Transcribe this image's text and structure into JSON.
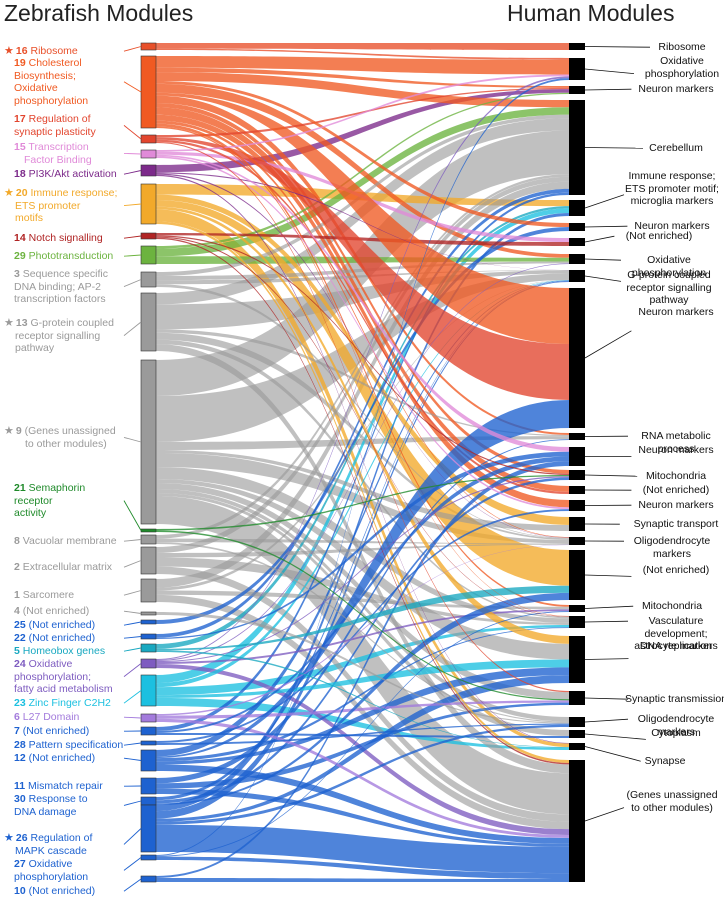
{
  "titles": {
    "left": "Zebrafish Modules",
    "right": "Human Modules"
  },
  "zebrafish_modules": [
    {
      "id": "16",
      "label": "Ribosome",
      "color": "#e8502a",
      "star": true,
      "star_color": "#e8502a"
    },
    {
      "id": "19",
      "label": "Cholesterol Biosynthesis; Oxidative phosphorylation",
      "color": "#f05a22"
    },
    {
      "id": "17",
      "label": "Regulation of synaptic plasticity",
      "color": "#e2452e"
    },
    {
      "id": "15",
      "label": "Transcription Factor Binding",
      "color": "#e08ad8"
    },
    {
      "id": "18",
      "label": "PI3K/Akt activation",
      "color": "#7c2a8a"
    },
    {
      "id": "20",
      "label": "Immune response; ETS promoter motifs",
      "color": "#f2a92a",
      "star": true,
      "star_color": "#f2a92a"
    },
    {
      "id": "14",
      "label": "Notch signalling",
      "color": "#b02424"
    },
    {
      "id": "29",
      "label": "Phototransduction",
      "color": "#6cb33f"
    },
    {
      "id": "3",
      "label": "Sequence specific DNA binding; AP-2 transcription factors",
      "color": "#9a9a9a"
    },
    {
      "id": "13",
      "label": "G-protein coupled receptor signalling pathway",
      "color": "#9a9a9a",
      "star": true,
      "star_color": "#9a9a9a"
    },
    {
      "id": "9",
      "label": "(Genes unassigned to other modules)",
      "color": "#9a9a9a",
      "star": true,
      "star_color": "#9a9a9a"
    },
    {
      "id": "21",
      "label": "Semaphorin receptor activity",
      "color": "#1f8a2a"
    },
    {
      "id": "8",
      "label": "Vacuolar membrane",
      "color": "#9a9a9a"
    },
    {
      "id": "2",
      "label": "Extracellular matrix",
      "color": "#9a9a9a"
    },
    {
      "id": "1",
      "label": "Sarcomere",
      "color": "#9a9a9a"
    },
    {
      "id": "4",
      "label": "(Not enriched)",
      "color": "#9a9a9a"
    },
    {
      "id": "25",
      "label": "(Not enriched)",
      "color": "#1e62d0"
    },
    {
      "id": "22",
      "label": "(Not enriched)",
      "color": "#1e62d0"
    },
    {
      "id": "5",
      "label": "Homeobox genes",
      "color": "#18a8c0"
    },
    {
      "id": "24",
      "label": "Oxidative phosphorylation; fatty acid metabolism",
      "color": "#7e5cc0"
    },
    {
      "id": "23",
      "label": "Zinc Finger C2H2",
      "color": "#1cc0e0"
    },
    {
      "id": "6",
      "label": "L27 Domain",
      "color": "#a37bdc"
    },
    {
      "id": "7",
      "label": "(Not enriched)",
      "color": "#1e62d0"
    },
    {
      "id": "28",
      "label": "Pattern specification",
      "color": "#1e62d0"
    },
    {
      "id": "12",
      "label": "(Not enriched)",
      "color": "#1e62d0"
    },
    {
      "id": "11",
      "label": "Mismatch repair",
      "color": "#1e62d0"
    },
    {
      "id": "30",
      "label": "Response to DNA damage",
      "color": "#1e62d0"
    },
    {
      "id": "26",
      "label": "Regulation of MAPK cascade",
      "color": "#1e62d0",
      "star": true,
      "star_color": "#1e62d0"
    },
    {
      "id": "27",
      "label": "Oxidative phosphorylation",
      "color": "#1e62d0"
    },
    {
      "id": "10",
      "label": "(Not enriched)",
      "color": "#1e62d0"
    }
  ],
  "human_modules": [
    {
      "label": "Ribosome"
    },
    {
      "label": "Oxidative phosphorylation"
    },
    {
      "label": "Neuron markers"
    },
    {
      "label": "Cerebellum"
    },
    {
      "label": "Immune response; ETS promoter motif; microglia markers"
    },
    {
      "label": "Neuron markers"
    },
    {
      "label": "(Not enriched)"
    },
    {
      "label": "Oxidative phosphorylation"
    },
    {
      "label": "G-protein coupled receptor signalling pathway"
    },
    {
      "label": "Neuron markers"
    },
    {
      "label": "RNA metabolic process"
    },
    {
      "label": "Neuron markers"
    },
    {
      "label": "Mitochondria"
    },
    {
      "label": "(Not enriched)"
    },
    {
      "label": "Neuron markers"
    },
    {
      "label": "Synaptic transport"
    },
    {
      "label": "Oligodendrocyte markers"
    },
    {
      "label": "(Not enriched)"
    },
    {
      "label": "Mitochondria"
    },
    {
      "label": "Vasculature development; astrocyte markers"
    },
    {
      "label": "DNA replication"
    },
    {
      "label": "Synaptic transmission"
    },
    {
      "label": "Oligodendrocyte markers"
    },
    {
      "label": "Cytoplasm"
    },
    {
      "label": "Synapse"
    },
    {
      "label": "(Genes unassigned to other modules)"
    }
  ],
  "flows": [
    {
      "from": "16",
      "to": 0,
      "w": 4
    },
    {
      "from": "16",
      "to": 1,
      "w": 1
    },
    {
      "from": "19",
      "to": 1,
      "w": 8
    },
    {
      "from": "19",
      "to": 3,
      "w": 6
    },
    {
      "from": "19",
      "to": 7,
      "w": 6
    },
    {
      "from": "19",
      "to": 10,
      "w": 5
    },
    {
      "from": "19",
      "to": 13,
      "w": 5
    },
    {
      "from": "19",
      "to": 14,
      "w": 4
    },
    {
      "from": "19",
      "to": 2,
      "w": 3
    },
    {
      "from": "19",
      "to": 12,
      "w": 3
    },
    {
      "from": "19",
      "to": 18,
      "w": 2
    },
    {
      "from": "19",
      "to": 16,
      "w": 2
    },
    {
      "from": "19",
      "to": 9,
      "w": 2
    },
    {
      "from": "19",
      "to": 5,
      "w": 2
    },
    {
      "from": "19",
      "to": 19,
      "w": 1
    },
    {
      "from": "17",
      "to": 2,
      "w": 2
    },
    {
      "from": "17",
      "to": 9,
      "w": 2
    },
    {
      "from": "17",
      "to": 13,
      "w": 2
    },
    {
      "from": "17",
      "to": 21,
      "w": 1
    },
    {
      "from": "15",
      "to": 1,
      "w": 1
    },
    {
      "from": "15",
      "to": 6,
      "w": 2
    },
    {
      "from": "15",
      "to": 11,
      "w": 1
    },
    {
      "from": "15",
      "to": 14,
      "w": 1
    },
    {
      "from": "18",
      "to": 2,
      "w": 6
    },
    {
      "from": "18",
      "to": 8,
      "w": 1
    },
    {
      "from": "18",
      "to": 16,
      "w": 1
    },
    {
      "from": "18",
      "to": 24,
      "w": 1
    },
    {
      "from": "20",
      "to": 4,
      "w": 8
    },
    {
      "from": "20",
      "to": 24,
      "w": 9
    },
    {
      "from": "20",
      "to": 17,
      "w": 5
    },
    {
      "from": "20",
      "to": 15,
      "w": 4
    },
    {
      "from": "20",
      "to": 20,
      "w": 2
    },
    {
      "from": "20",
      "to": 25,
      "w": 2
    },
    {
      "from": "14",
      "to": 6,
      "w": 2
    },
    {
      "from": "14",
      "to": 19,
      "w": 1
    },
    {
      "from": "14",
      "to": 12,
      "w": 1
    },
    {
      "from": "14",
      "to": 25,
      "w": 1
    },
    {
      "from": "29",
      "to": 3,
      "w": 6
    },
    {
      "from": "29",
      "to": 7,
      "w": 6
    },
    {
      "from": "29",
      "to": 2,
      "w": 2
    },
    {
      "from": "3",
      "to": 7,
      "w": 3
    },
    {
      "from": "3",
      "to": 8,
      "w": 3
    },
    {
      "from": "3",
      "to": 3,
      "w": 3
    },
    {
      "from": "3",
      "to": 16,
      "w": 2
    },
    {
      "from": "13",
      "to": 8,
      "w": 22
    },
    {
      "from": "13",
      "to": 3,
      "w": 10
    },
    {
      "from": "13",
      "to": 16,
      "w": 6
    },
    {
      "from": "13",
      "to": 25,
      "w": 6
    },
    {
      "from": "13",
      "to": 19,
      "w": 4
    },
    {
      "from": "13",
      "to": 10,
      "w": 3
    },
    {
      "from": "9",
      "to": 8,
      "w": 46
    },
    {
      "from": "9",
      "to": 3,
      "w": 36
    },
    {
      "from": "9",
      "to": 25,
      "w": 28
    },
    {
      "from": "9",
      "to": 16,
      "w": 14
    },
    {
      "from": "9",
      "to": 19,
      "w": 12
    },
    {
      "from": "9",
      "to": 10,
      "w": 8
    },
    {
      "from": "9",
      "to": 21,
      "w": 6
    },
    {
      "from": "9",
      "to": 22,
      "w": 4
    },
    {
      "from": "9",
      "to": 23,
      "w": 3
    },
    {
      "from": "9",
      "to": 20,
      "w": 4
    },
    {
      "from": "9",
      "to": 15,
      "w": 3
    },
    {
      "from": "21",
      "to": 21,
      "w": 1
    },
    {
      "from": "21",
      "to": 12,
      "w": 1
    },
    {
      "from": "8",
      "to": 16,
      "w": 2
    },
    {
      "from": "8",
      "to": 3,
      "w": 2
    },
    {
      "from": "8",
      "to": 22,
      "w": 1
    },
    {
      "from": "2",
      "to": 25,
      "w": 5
    },
    {
      "from": "2",
      "to": 19,
      "w": 6
    },
    {
      "from": "2",
      "to": 16,
      "w": 3
    },
    {
      "from": "2",
      "to": 3,
      "w": 4
    },
    {
      "from": "1",
      "to": 25,
      "w": 5
    },
    {
      "from": "1",
      "to": 3,
      "w": 6
    },
    {
      "from": "1",
      "to": 18,
      "w": 3
    },
    {
      "from": "1",
      "to": 8,
      "w": 2
    },
    {
      "from": "4",
      "to": 22,
      "w": 1
    },
    {
      "from": "25",
      "to": 5,
      "w": 2
    },
    {
      "from": "22",
      "to": 3,
      "w": 3
    },
    {
      "from": "22",
      "to": 11,
      "w": 1
    },
    {
      "from": "5",
      "to": 4,
      "w": 3
    },
    {
      "from": "5",
      "to": 17,
      "w": 1
    },
    {
      "from": "5",
      "to": 24,
      "w": 1
    },
    {
      "from": "24",
      "to": 18,
      "w": 2
    },
    {
      "from": "24",
      "to": 7,
      "w": 1
    },
    {
      "from": "24",
      "to": 25,
      "w": 4
    },
    {
      "from": "24",
      "to": 1,
      "w": 1
    },
    {
      "from": "24",
      "to": 12,
      "w": 1
    },
    {
      "from": "23",
      "to": 4,
      "w": 6
    },
    {
      "from": "23",
      "to": 24,
      "w": 6
    },
    {
      "from": "23",
      "to": 19,
      "w": 6
    },
    {
      "from": "23",
      "to": 8,
      "w": 3
    },
    {
      "from": "23",
      "to": 20,
      "w": 2
    },
    {
      "from": "6",
      "to": 21,
      "w": 2
    },
    {
      "from": "6",
      "to": 16,
      "w": 1
    },
    {
      "from": "6",
      "to": 25,
      "w": 2
    },
    {
      "from": "7",
      "to": 11,
      "w": 1
    },
    {
      "from": "7",
      "to": 3,
      "w": 2
    },
    {
      "from": "7",
      "to": 23,
      "w": 1
    },
    {
      "from": "28",
      "to": 14,
      "w": 1
    },
    {
      "from": "28",
      "to": 22,
      "w": 1
    },
    {
      "from": "12",
      "to": 8,
      "w": 4
    },
    {
      "from": "12",
      "to": 9,
      "w": 1
    },
    {
      "from": "12",
      "to": 25,
      "w": 4
    },
    {
      "from": "12",
      "to": 20,
      "w": 2
    },
    {
      "from": "12",
      "to": 19,
      "w": 2
    },
    {
      "from": "11",
      "to": 10,
      "w": 2
    },
    {
      "from": "11",
      "to": 21,
      "w": 2
    },
    {
      "from": "11",
      "to": 25,
      "w": 2
    },
    {
      "from": "30",
      "to": 12,
      "w": 2
    },
    {
      "from": "30",
      "to": 17,
      "w": 1
    },
    {
      "from": "30",
      "to": 8,
      "w": 2
    },
    {
      "from": "26",
      "to": 25,
      "w": 18
    },
    {
      "from": "26",
      "to": 8,
      "w": 5
    },
    {
      "from": "26",
      "to": 4,
      "w": 4
    },
    {
      "from": "26",
      "to": 22,
      "w": 2
    },
    {
      "from": "26",
      "to": 20,
      "w": 2
    },
    {
      "from": "27",
      "to": 1,
      "w": 1
    },
    {
      "from": "27",
      "to": 25,
      "w": 4
    },
    {
      "from": "27",
      "to": 18,
      "w": 1
    },
    {
      "from": "10",
      "to": 25,
      "w": 2
    },
    {
      "from": "10",
      "to": 11,
      "w": 1
    }
  ]
}
